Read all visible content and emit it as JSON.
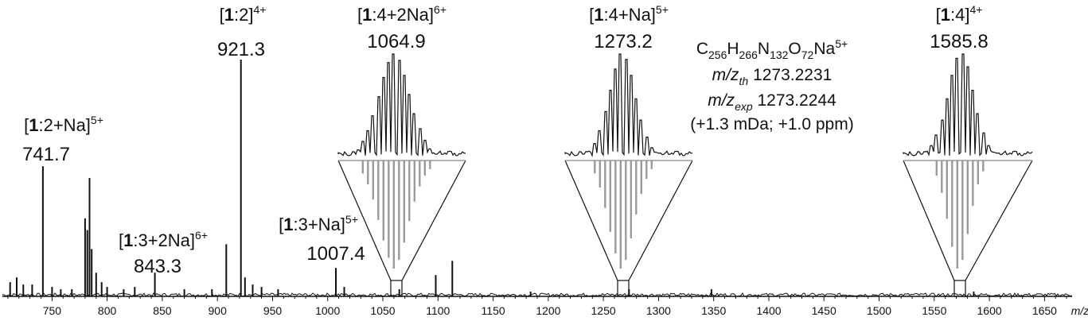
{
  "chart_data": {
    "type": "line",
    "title": "",
    "xlabel": "m/z",
    "ylabel": "",
    "xlim": [
      705,
      1675
    ],
    "ylim": [
      0,
      100
    ],
    "xticks": [
      750,
      800,
      850,
      900,
      950,
      1000,
      1050,
      1100,
      1150,
      1200,
      1250,
      1300,
      1350,
      1400,
      1450,
      1500,
      1550,
      1600,
      1650
    ],
    "peaks": [
      {
        "x": 712,
        "y": 6
      },
      {
        "x": 718,
        "y": 8
      },
      {
        "x": 724,
        "y": 5
      },
      {
        "x": 732,
        "y": 5
      },
      {
        "x": 741.7,
        "y": 55
      },
      {
        "x": 750,
        "y": 4
      },
      {
        "x": 758,
        "y": 3
      },
      {
        "x": 768,
        "y": 3
      },
      {
        "x": 780,
        "y": 33
      },
      {
        "x": 782,
        "y": 28
      },
      {
        "x": 784,
        "y": 50
      },
      {
        "x": 786,
        "y": 20
      },
      {
        "x": 790,
        "y": 10
      },
      {
        "x": 795,
        "y": 6
      },
      {
        "x": 800,
        "y": 4
      },
      {
        "x": 815,
        "y": 3
      },
      {
        "x": 825,
        "y": 4
      },
      {
        "x": 843.3,
        "y": 10
      },
      {
        "x": 870,
        "y": 3
      },
      {
        "x": 895,
        "y": 3
      },
      {
        "x": 908,
        "y": 22
      },
      {
        "x": 921.3,
        "y": 100
      },
      {
        "x": 925,
        "y": 8
      },
      {
        "x": 932,
        "y": 5
      },
      {
        "x": 940,
        "y": 4
      },
      {
        "x": 955,
        "y": 3
      },
      {
        "x": 1007.4,
        "y": 12
      },
      {
        "x": 1015,
        "y": 4
      },
      {
        "x": 1064.9,
        "y": 3
      },
      {
        "x": 1098,
        "y": 9
      },
      {
        "x": 1113,
        "y": 15
      },
      {
        "x": 1184,
        "y": 2
      },
      {
        "x": 1273.2,
        "y": 3
      },
      {
        "x": 1348,
        "y": 3
      },
      {
        "x": 1585.8,
        "y": 2
      }
    ],
    "peak_labels": [
      {
        "ion_main": "1",
        "ion_rest": ":2+Na]",
        "charge": "5+",
        "mz": "741.7"
      },
      {
        "ion_main": "1",
        "ion_rest": ":3+2Na]",
        "charge": "6+",
        "mz": "843.3"
      },
      {
        "ion_main": "1",
        "ion_rest": ":2]",
        "charge": "4+",
        "mz": "921.3"
      },
      {
        "ion_main": "1",
        "ion_rest": ":3+Na]",
        "charge": "5+",
        "mz": "1007.4"
      },
      {
        "ion_main": "1",
        "ion_rest": ":4+2Na]",
        "charge": "6+",
        "mz": "1064.9"
      },
      {
        "ion_main": "1",
        "ion_rest": ":4+Na]",
        "charge": "5+",
        "mz": "1273.2"
      },
      {
        "ion_main": "1",
        "ion_rest": ":4]",
        "charge": "4+",
        "mz": "1585.8"
      }
    ],
    "insets": [
      {
        "center": 1064.9,
        "experimental": [
          10,
          18,
          28,
          42,
          60,
          78,
          92,
          100,
          94,
          80,
          62,
          44,
          30,
          19,
          11,
          6
        ],
        "simulated": [
          12,
          22,
          36,
          55,
          74,
          90,
          100,
          92,
          76,
          56,
          38,
          24,
          14,
          8
        ]
      },
      {
        "center": 1273.2,
        "experimental": [
          8,
          16,
          28,
          46,
          66,
          86,
          100,
          95,
          80,
          58,
          38,
          22,
          12,
          6
        ],
        "simulated": [
          12,
          25,
          44,
          66,
          86,
          100,
          92,
          72,
          50,
          31,
          17,
          8
        ]
      },
      {
        "center": 1585.8,
        "experimental": [
          14,
          24,
          38,
          58,
          80,
          96,
          100,
          88,
          66,
          44,
          26,
          14
        ],
        "simulated": [
          14,
          30,
          54,
          80,
          100,
          92,
          68,
          42,
          22,
          10
        ]
      }
    ],
    "annotation": {
      "formula": [
        {
          "t": "C"
        },
        {
          "t": "256",
          "sub": true
        },
        {
          "t": "H"
        },
        {
          "t": "266",
          "sub": true
        },
        {
          "t": "N"
        },
        {
          "t": "132",
          "sub": true
        },
        {
          "t": "O"
        },
        {
          "t": "72",
          "sub": true
        },
        {
          "t": "Na"
        },
        {
          "t": "5+",
          "sup": true
        }
      ],
      "theory_label": "m/z",
      "theory_sub": "th",
      "theory_value": "1273.2231",
      "exp_label": "m/z",
      "exp_sub": "exp",
      "exp_value": "1273.2244",
      "error": "(+1.3 mDa; +1.0 ppm)"
    }
  },
  "colors": {
    "trace": "#111111",
    "simulated": "#9a9a9a",
    "axis": "#111111"
  }
}
